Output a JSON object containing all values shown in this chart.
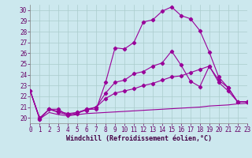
{
  "background_color": "#cce8ee",
  "grid_color": "#aacccc",
  "line_color": "#990099",
  "xlabel": "Windchill (Refroidissement éolien,°C)",
  "xlim": [
    0,
    23
  ],
  "ylim": [
    19.5,
    30.5
  ],
  "xticks": [
    0,
    1,
    2,
    3,
    4,
    5,
    6,
    7,
    8,
    9,
    10,
    11,
    12,
    13,
    14,
    15,
    16,
    17,
    18,
    19,
    20,
    21,
    22,
    23
  ],
  "yticks": [
    20,
    21,
    22,
    23,
    24,
    25,
    26,
    27,
    28,
    29,
    30
  ],
  "line1_x": [
    0,
    1,
    2,
    3,
    4,
    5,
    6,
    7,
    8,
    9,
    10,
    11,
    12,
    13,
    14,
    15,
    16,
    17,
    18,
    19,
    20,
    21,
    22,
    23
  ],
  "line1_y": [
    22.5,
    19.9,
    20.8,
    20.8,
    20.2,
    20.4,
    20.8,
    20.8,
    23.3,
    26.5,
    26.4,
    27.0,
    28.9,
    29.1,
    29.9,
    30.3,
    29.5,
    29.2,
    28.1,
    26.1,
    23.8,
    22.8,
    21.5,
    21.5
  ],
  "line2_x": [
    0,
    1,
    2,
    3,
    4,
    5,
    6,
    7,
    8,
    9,
    10,
    11,
    12,
    13,
    14,
    15,
    16,
    17,
    18,
    19,
    20,
    21,
    22,
    23
  ],
  "line2_y": [
    22.5,
    19.9,
    20.8,
    20.6,
    20.4,
    20.5,
    20.8,
    21.0,
    22.3,
    23.3,
    23.5,
    24.1,
    24.3,
    24.8,
    25.1,
    26.2,
    24.9,
    23.4,
    22.9,
    24.8,
    23.5,
    22.8,
    21.5,
    21.5
  ],
  "line3_x": [
    0,
    1,
    2,
    3,
    4,
    5,
    6,
    7,
    8,
    9,
    10,
    11,
    12,
    13,
    14,
    15,
    16,
    17,
    18,
    19,
    20,
    21,
    22,
    23
  ],
  "line3_y": [
    22.5,
    20.0,
    20.8,
    20.5,
    20.3,
    20.5,
    20.7,
    21.0,
    21.8,
    22.3,
    22.5,
    22.7,
    23.0,
    23.2,
    23.5,
    23.8,
    23.9,
    24.2,
    24.5,
    24.8,
    23.3,
    22.5,
    21.5,
    21.5
  ],
  "line4_x": [
    0,
    1,
    2,
    3,
    4,
    5,
    6,
    7,
    8,
    9,
    10,
    11,
    12,
    13,
    14,
    15,
    16,
    17,
    18,
    19,
    20,
    21,
    22,
    23
  ],
  "line4_y": [
    22.5,
    19.9,
    20.5,
    20.3,
    20.2,
    20.3,
    20.4,
    20.45,
    20.5,
    20.55,
    20.6,
    20.65,
    20.7,
    20.75,
    20.8,
    20.85,
    20.9,
    20.95,
    21.0,
    21.1,
    21.15,
    21.2,
    21.3,
    21.35
  ]
}
